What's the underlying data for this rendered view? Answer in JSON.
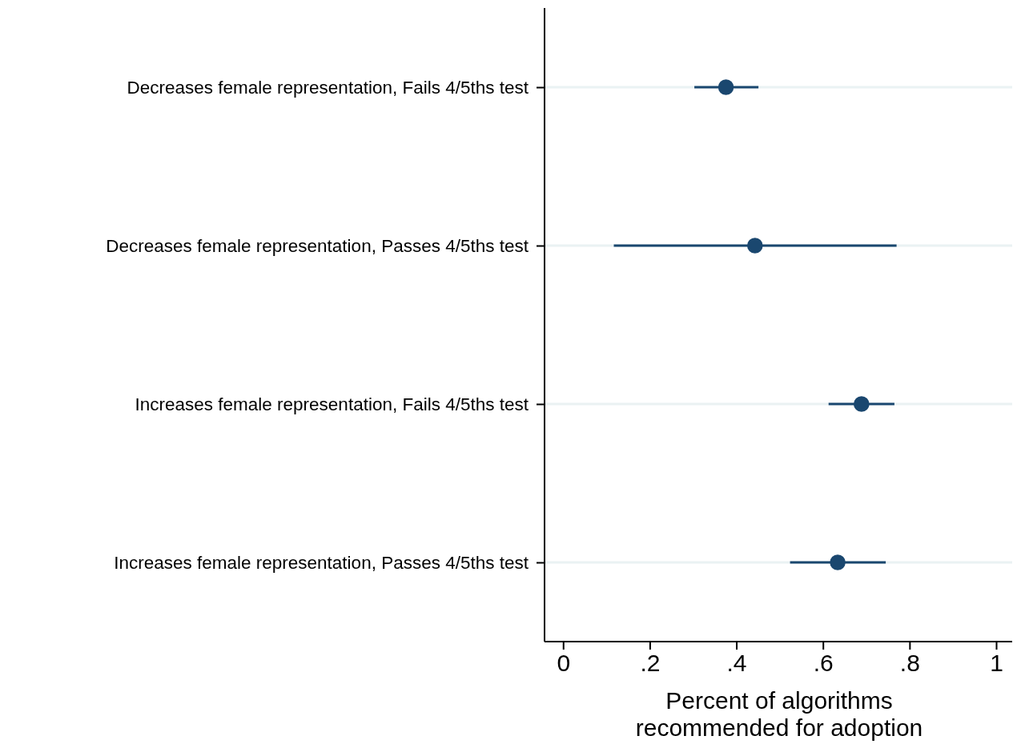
{
  "chart_data": {
    "type": "scatter",
    "orientation": "horizontal",
    "xlabel": "Percent of algorithms\nrecommended for adoption",
    "categories": [
      "Decreases female representation, Fails 4/5ths test",
      "Decreases female representation, Passes 4/5ths test",
      "Increases female representation, Fails 4/5ths test",
      "Increases female representation, Passes 4/5ths test"
    ],
    "series": [
      {
        "color": "#1a476f",
        "values": [
          0.376,
          0.443,
          0.689,
          0.634
        ],
        "errors": [
          [
            0.303,
            0.451
          ],
          [
            0.117,
            0.77
          ],
          [
            0.613,
            0.765
          ],
          [
            0.524,
            0.745
          ]
        ]
      }
    ],
    "xlim": [
      -0.043,
      1.037
    ],
    "xticks": [
      0,
      {
        "value": 0.2,
        "label": ".2"
      },
      {
        "value": 0.4,
        "label": ".4"
      },
      {
        "value": 0.6,
        "label": ".6"
      },
      {
        "value": 0.8,
        "label": ".8"
      },
      1
    ],
    "grid": "y",
    "marker": "circle"
  }
}
